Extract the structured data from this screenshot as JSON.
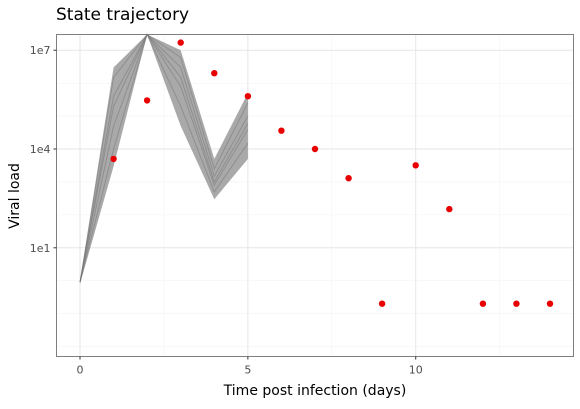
{
  "chart_data": {
    "type": "scatter",
    "title": "State trajectory",
    "xlabel": "Time post infection (days)",
    "ylabel": "Viral load",
    "y_scale": "log10",
    "xlim": [
      -0.7,
      14.7
    ],
    "ylim": [
      0.005,
      30000000
    ],
    "x_ticks": [
      {
        "value": 0,
        "label": "0"
      },
      {
        "value": 5,
        "label": "5"
      },
      {
        "value": 10,
        "label": "10"
      }
    ],
    "y_ticks": [
      {
        "value": 10,
        "label": "1e1"
      },
      {
        "value": 10000,
        "label": "1e4"
      },
      {
        "value": 10000000,
        "label": "1e7"
      }
    ],
    "grid": true,
    "legend": "none",
    "colors": {
      "points": "#e80000",
      "band": "#8c8c8c",
      "grid_major": "#e6e6e6",
      "grid_minor": "#f3f3f3",
      "panel_border": "#7f7f7f"
    },
    "observed_points": [
      {
        "x": 1,
        "y": 5000
      },
      {
        "x": 2,
        "y": 300000
      },
      {
        "x": 3,
        "y": 17000000
      },
      {
        "x": 4,
        "y": 2000000
      },
      {
        "x": 5,
        "y": 400000
      },
      {
        "x": 6,
        "y": 36000
      },
      {
        "x": 7,
        "y": 10000
      },
      {
        "x": 8,
        "y": 1300
      },
      {
        "x": 9,
        "y": 0.2
      },
      {
        "x": 10,
        "y": 3200
      },
      {
        "x": 11,
        "y": 150
      },
      {
        "x": 12,
        "y": 0.2
      },
      {
        "x": 13,
        "y": 0.2
      },
      {
        "x": 14,
        "y": 0.2
      }
    ],
    "trajectory_band": {
      "x": [
        0,
        1,
        2,
        3,
        4,
        5
      ],
      "upper": [
        1,
        3000000,
        30000000,
        10000000,
        5000,
        500000
      ],
      "lower": [
        0.8,
        3000,
        30000000,
        50000,
        300,
        5000
      ],
      "trajectories": [
        [
          0.9,
          400000,
          30000000,
          3000000,
          1500,
          100000
        ],
        [
          0.9,
          50000,
          30000000,
          800000,
          800,
          40000
        ],
        [
          0.9,
          1500000,
          30000000,
          6000000,
          2500,
          250000
        ],
        [
          0.9,
          10000,
          30000000,
          200000,
          500,
          15000
        ],
        [
          0.9,
          200000,
          30000000,
          1500000,
          1000,
          60000
        ]
      ]
    }
  }
}
